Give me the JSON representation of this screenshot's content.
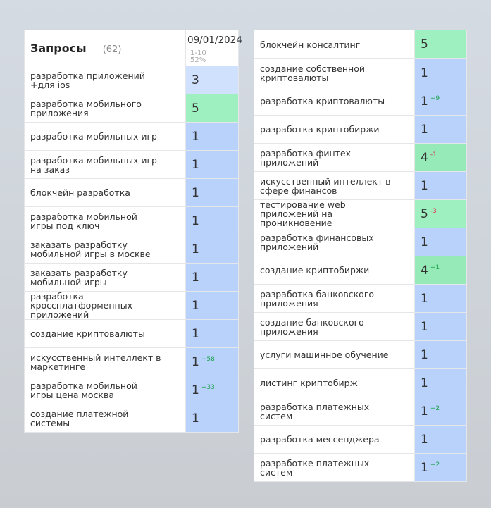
{
  "header": {
    "title": "Запросы",
    "count": "(62)",
    "date": "09/01/2024",
    "range": "1-10",
    "percent": "52%"
  },
  "left_rows": [
    {
      "lines": [
        "разработка приложений",
        "+для ios"
      ],
      "value": "3",
      "change": "",
      "dir": "",
      "color": "light"
    },
    {
      "lines": [
        "разработка мобильного",
        "приложения"
      ],
      "value": "5",
      "change": "",
      "dir": "",
      "color": "green"
    },
    {
      "lines": [
        "разработка мобильных игр"
      ],
      "value": "1",
      "change": "",
      "dir": "",
      "color": "blue"
    },
    {
      "lines": [
        "разработка мобильных игр",
        "на заказ"
      ],
      "value": "1",
      "change": "",
      "dir": "",
      "color": "blue"
    },
    {
      "lines": [
        "блокчейн разработка"
      ],
      "value": "1",
      "change": "",
      "dir": "",
      "color": "blue"
    },
    {
      "lines": [
        "разработка мобильной",
        "игры под ключ"
      ],
      "value": "1",
      "change": "",
      "dir": "",
      "color": "blue"
    },
    {
      "lines": [
        "заказать разработку",
        "мобильной игры в москве"
      ],
      "value": "1",
      "change": "",
      "dir": "",
      "color": "blue"
    },
    {
      "lines": [
        "заказать разработку",
        "мобильной игры"
      ],
      "value": "1",
      "change": "",
      "dir": "",
      "color": "blue"
    },
    {
      "lines": [
        "разработка",
        "кроссплатформенных",
        "приложений"
      ],
      "value": "1",
      "change": "",
      "dir": "",
      "color": "blue"
    },
    {
      "lines": [
        "создание криптовалюты"
      ],
      "value": "1",
      "change": "",
      "dir": "",
      "color": "blue"
    },
    {
      "lines": [
        "искусственный интеллект в",
        "маркетинге"
      ],
      "value": "1",
      "change": "+58",
      "dir": "up",
      "color": "blue"
    },
    {
      "lines": [
        "разработка мобильной",
        "игры цена москва"
      ],
      "value": "1",
      "change": "+33",
      "dir": "up",
      "color": "blue"
    },
    {
      "lines": [
        "создание платежной",
        "системы"
      ],
      "value": "1",
      "change": "",
      "dir": "",
      "color": "blue"
    }
  ],
  "right_rows": [
    {
      "lines": [
        "блокчейн консалтинг"
      ],
      "value": "5",
      "change": "",
      "dir": "",
      "color": "green"
    },
    {
      "lines": [
        "создание собственной",
        "криптовалюты"
      ],
      "value": "1",
      "change": "",
      "dir": "",
      "color": "blue"
    },
    {
      "lines": [
        "разработка криптовалюты"
      ],
      "value": "1",
      "change": "+9",
      "dir": "up",
      "color": "blue"
    },
    {
      "lines": [
        "разработка криптобиржи"
      ],
      "value": "1",
      "change": "",
      "dir": "",
      "color": "blue"
    },
    {
      "lines": [
        "разработка финтех",
        "приложений"
      ],
      "value": "4",
      "change": "-1",
      "dir": "down",
      "color": "green2"
    },
    {
      "lines": [
        "искусственный интеллект в",
        "сфере финансов"
      ],
      "value": "1",
      "change": "",
      "dir": "",
      "color": "blue"
    },
    {
      "lines": [
        "тестирование web",
        "приложений на",
        "проникновение"
      ],
      "value": "5",
      "change": "-3",
      "dir": "down",
      "color": "green"
    },
    {
      "lines": [
        "разработка финансовых",
        "приложений"
      ],
      "value": "1",
      "change": "",
      "dir": "",
      "color": "blue"
    },
    {
      "lines": [
        "создание криптобиржи"
      ],
      "value": "4",
      "change": "+1",
      "dir": "up",
      "color": "green2"
    },
    {
      "lines": [
        "разработка банковского",
        "приложения"
      ],
      "value": "1",
      "change": "",
      "dir": "",
      "color": "blue"
    },
    {
      "lines": [
        "создание банковского",
        "приложения"
      ],
      "value": "1",
      "change": "",
      "dir": "",
      "color": "blue"
    },
    {
      "lines": [
        "услуги машинное обучение"
      ],
      "value": "1",
      "change": "",
      "dir": "",
      "color": "blue"
    },
    {
      "lines": [
        "листинг криптобирж"
      ],
      "value": "1",
      "change": "",
      "dir": "",
      "color": "blue"
    },
    {
      "lines": [
        "разработка платежных",
        "систем"
      ],
      "value": "1",
      "change": "+2",
      "dir": "up",
      "color": "blue"
    },
    {
      "lines": [
        "разработка мессенджера"
      ],
      "value": "1",
      "change": "",
      "dir": "",
      "color": "blue"
    },
    {
      "lines": [
        "разработке платежных",
        "систем"
      ],
      "value": "1",
      "change": "+2",
      "dir": "up",
      "color": "blue"
    }
  ]
}
